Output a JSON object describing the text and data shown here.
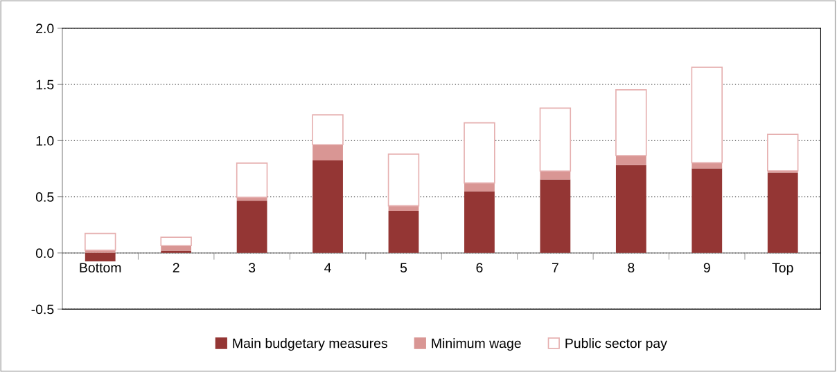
{
  "chart_data": {
    "type": "bar",
    "stacked": true,
    "categories": [
      "Bottom",
      "2",
      "3",
      "4",
      "5",
      "6",
      "7",
      "8",
      "9",
      "Top"
    ],
    "series": [
      {
        "name": "Main budgetary measures",
        "color": "#943634",
        "values": [
          -0.075,
          0.02,
          0.465,
          0.824,
          0.375,
          0.548,
          0.654,
          0.782,
          0.753,
          0.716
        ]
      },
      {
        "name": "Minimum wage",
        "color": "#d99694",
        "values": [
          0.024,
          0.045,
          0.03,
          0.14,
          0.045,
          0.075,
          0.075,
          0.085,
          0.05,
          0.015
        ]
      },
      {
        "name": "Public sector pay",
        "color": "#e6b0b0",
        "values": [
          0.15,
          0.075,
          0.305,
          0.265,
          0.46,
          0.535,
          0.56,
          0.585,
          0.85,
          0.325
        ]
      }
    ],
    "ylim": [
      -0.5,
      2.0
    ],
    "yticks": [
      {
        "value": -0.5,
        "label": "-0.5"
      },
      {
        "value": 0,
        "label": "0.0"
      },
      {
        "value": 0.5,
        "label": "0.5"
      },
      {
        "value": 1.0,
        "label": "1.0"
      },
      {
        "value": 1.5,
        "label": "1.5"
      },
      {
        "value": 2.0,
        "label": "2.0"
      }
    ],
    "grid": "y",
    "legend": "bottom"
  }
}
